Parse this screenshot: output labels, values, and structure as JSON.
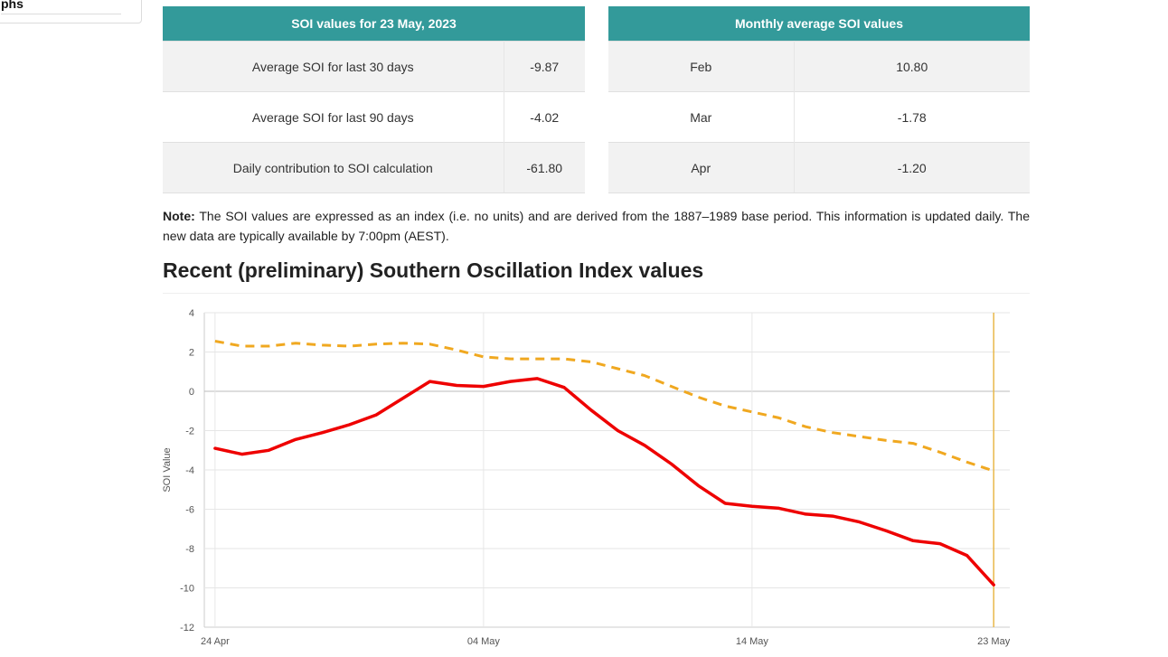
{
  "sidebar": {
    "partial_label": "phs"
  },
  "table_soi": {
    "title": "SOI values for 23 May, 2023",
    "rows": [
      {
        "label": "Average SOI for last 30 days",
        "value": "-9.87"
      },
      {
        "label": "Average SOI for last 90 days",
        "value": "-4.02"
      },
      {
        "label": "Daily contribution to SOI calculation",
        "value": "-61.80"
      }
    ]
  },
  "table_monthly": {
    "title": "Monthly average SOI values",
    "rows": [
      {
        "month": "Feb",
        "value": "10.80"
      },
      {
        "month": "Mar",
        "value": "-1.78"
      },
      {
        "month": "Apr",
        "value": "-1.20"
      }
    ]
  },
  "note": {
    "label": "Note:",
    "text": " The SOI values are expressed as an index (i.e. no units) and are derived from the 1887–1989 base period. This information is updated daily. The new data are typically available by 7:00pm (AEST)."
  },
  "section_title": "Recent (preliminary) Southern Oscillation Index values",
  "chart_data": {
    "type": "line",
    "ylabel": "SOI Value",
    "ylim": [
      -12,
      4
    ],
    "yticks": [
      4,
      2,
      0,
      -2,
      -4,
      -6,
      -8,
      -10,
      -12
    ],
    "x_tick_labels": [
      {
        "label": "24 Apr",
        "day": 0
      },
      {
        "label": "04 May",
        "day": 10
      },
      {
        "label": "14 May",
        "day": 20
      },
      {
        "label": "23 May",
        "day": 29
      }
    ],
    "x_range_days": [
      -0.4,
      29.6
    ],
    "marker_line_day": 29,
    "grid": true,
    "colors": {
      "series30": "#ee0000",
      "series90": "#f0a820",
      "marker": "#e8b84a",
      "zero": "#bbbbbb",
      "grid": "#e6e6e6"
    },
    "series": [
      {
        "key": "series30",
        "style": "solid",
        "values": [
          -2.9,
          -3.2,
          -3.0,
          -2.45,
          -2.1,
          -1.7,
          -1.2,
          -0.35,
          0.5,
          0.3,
          0.25,
          0.5,
          0.65,
          0.2,
          -0.95,
          -2.0,
          -2.75,
          -3.7,
          -4.8,
          -5.7,
          -5.85,
          -5.95,
          -6.25,
          -6.35,
          -6.65,
          -7.1,
          -7.6,
          -7.75,
          -8.35,
          -9.85
        ]
      },
      {
        "key": "series90",
        "style": "dashed",
        "values": [
          2.55,
          2.3,
          2.3,
          2.45,
          2.35,
          2.3,
          2.4,
          2.45,
          2.4,
          2.1,
          1.75,
          1.65,
          1.65,
          1.65,
          1.5,
          1.15,
          0.8,
          0.25,
          -0.3,
          -0.75,
          -1.05,
          -1.35,
          -1.8,
          -2.1,
          -2.3,
          -2.5,
          -2.65,
          -3.1,
          -3.6,
          -4.05
        ]
      }
    ]
  }
}
